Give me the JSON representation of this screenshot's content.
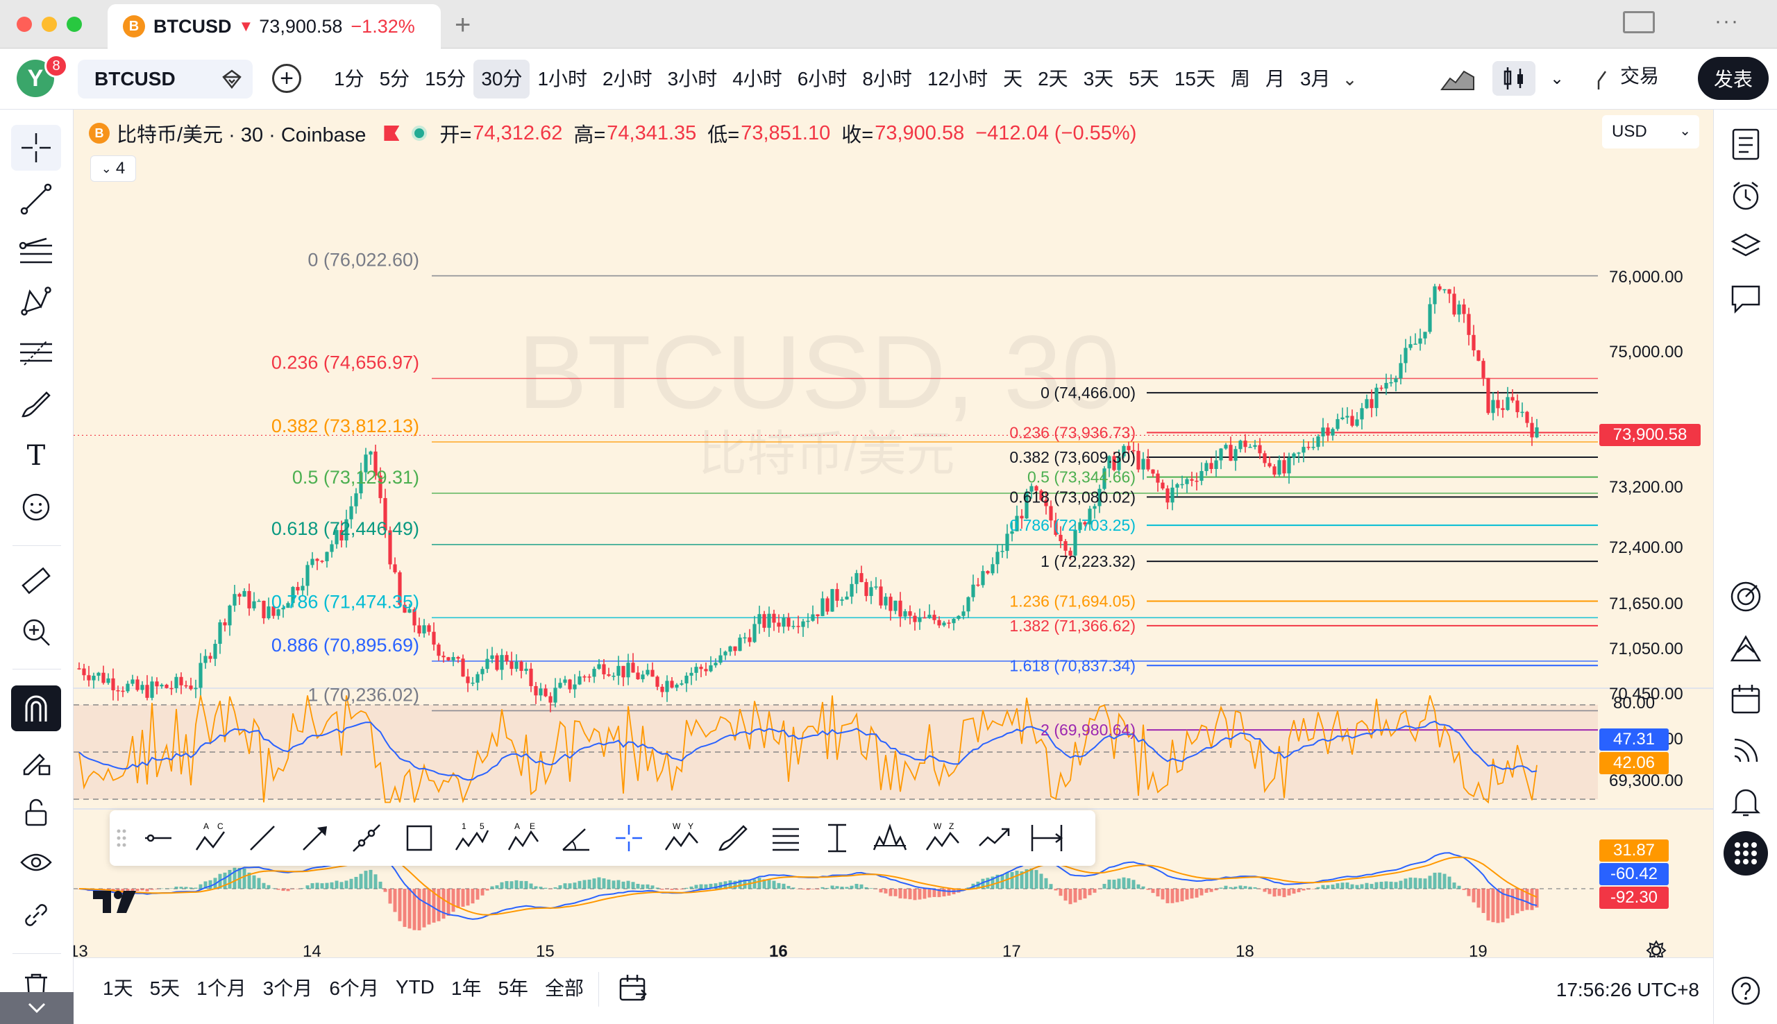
{
  "window": {
    "tab_symbol": "BTCUSD",
    "tab_price": "73,900.58",
    "tab_change": "−1.32%",
    "tab_coin_glyph": "B"
  },
  "toolbar": {
    "avatar_letter": "Y",
    "notification_count": "8",
    "symbol": "BTCUSD",
    "intervals": [
      "1分",
      "5分",
      "15分",
      "30分",
      "1小时",
      "2小时",
      "3小时",
      "4小时",
      "6小时",
      "8小时",
      "12小时",
      "天",
      "2天",
      "3天",
      "5天",
      "15天",
      "周",
      "月",
      "3月"
    ],
    "active_interval": "30分",
    "trade_label": "交易",
    "publish_label": "发表"
  },
  "legend": {
    "title": "比特币/美元 · 30 · Coinbase",
    "open_label": "开=",
    "open": "74,312.62",
    "high_label": "高=",
    "high": "74,341.35",
    "low_label": "低=",
    "low": "73,851.10",
    "close_label": "收=",
    "close": "73,900.58",
    "change": "−412.04 (−0.55%)",
    "collapse_count": "4"
  },
  "currency": "USD",
  "watermark": {
    "symbol": "BTCUSD, 30",
    "name": "比特币/美元"
  },
  "chart_data": {
    "type": "candlestick",
    "symbol": "BTCUSD",
    "interval": "30",
    "exchange": "Coinbase",
    "price_axis": [
      "76,000.00",
      "75,000.00",
      "73,200.00",
      "72,400.00",
      "71,650.00",
      "71,050.00",
      "70,450.00",
      "69,850.00",
      "69,300.00"
    ],
    "current_price": "73,900.58",
    "x_axis": [
      "13",
      "14",
      "15",
      "16",
      "17",
      "18",
      "19"
    ],
    "bold_x_label": "16",
    "close_path": [
      [
        "13 00:00",
        70800
      ],
      [
        "13 06:00",
        70500
      ],
      [
        "13 12:00",
        70600
      ],
      [
        "13 16:00",
        71800
      ],
      [
        "13 20:00",
        71500
      ],
      [
        "14 00:00",
        72200
      ],
      [
        "14 03:00",
        72600
      ],
      [
        "14 06:00",
        73700
      ],
      [
        "14 09:00",
        71600
      ],
      [
        "14 12:00",
        71200
      ],
      [
        "14 16:00",
        70700
      ],
      [
        "14 20:00",
        70950
      ],
      [
        "15 00:00",
        70400
      ],
      [
        "15 06:00",
        70850
      ],
      [
        "15 12:00",
        70600
      ],
      [
        "15 18:00",
        70900
      ],
      [
        "15 22:00",
        71400
      ],
      [
        "16 03:00",
        71500
      ],
      [
        "16 08:00",
        71950
      ],
      [
        "16 14:00",
        71400
      ],
      [
        "16 18:00",
        71500
      ],
      [
        "16 22:00",
        72150
      ],
      [
        "17 02:00",
        73150
      ],
      [
        "17 06:00",
        72400
      ],
      [
        "17 10:00",
        73500
      ],
      [
        "17 12:00",
        73700
      ],
      [
        "17 16:00",
        73100
      ],
      [
        "17 20:00",
        73500
      ],
      [
        "18 00:00",
        73800
      ],
      [
        "18 04:00",
        73400
      ],
      [
        "18 08:00",
        74000
      ],
      [
        "18 12:00",
        74200
      ],
      [
        "18 18:00",
        75200
      ],
      [
        "18 20:00",
        75950
      ],
      [
        "18 23:00",
        75300
      ],
      [
        "19 01:00",
        74300
      ],
      [
        "19 04:00",
        74300
      ],
      [
        "19 06:00",
        73900
      ]
    ],
    "fib_left": [
      {
        "ratio": "0",
        "price": "76,022.60",
        "color": "#787b86"
      },
      {
        "ratio": "0.236",
        "price": "74,656.97",
        "color": "#f23645"
      },
      {
        "ratio": "0.382",
        "price": "73,812.13",
        "color": "#ff9800"
      },
      {
        "ratio": "0.5",
        "price": "73,129.31",
        "color": "#4caf50"
      },
      {
        "ratio": "0.618",
        "price": "72,446.49",
        "color": "#089981"
      },
      {
        "ratio": "0.786",
        "price": "71,474.35",
        "color": "#00bcd4"
      },
      {
        "ratio": "0.886",
        "price": "70,895.69",
        "color": "#2962ff"
      },
      {
        "ratio": "1",
        "price": "70,236.02",
        "color": "#787b86"
      }
    ],
    "fib_right": [
      {
        "ratio": "0",
        "price": "74,466.00",
        "color": "#131722"
      },
      {
        "ratio": "0.236",
        "price": "73,936.73",
        "color": "#f23645"
      },
      {
        "ratio": "0.382",
        "price": "73,609.30",
        "color": "#131722"
      },
      {
        "ratio": "0.5",
        "price": "73,344.66",
        "color": "#4caf50"
      },
      {
        "ratio": "0.618",
        "price": "73,080.02",
        "color": "#131722"
      },
      {
        "ratio": "0.786",
        "price": "72,703.25",
        "color": "#00bcd4"
      },
      {
        "ratio": "1",
        "price": "72,223.32",
        "color": "#131722"
      },
      {
        "ratio": "1.236",
        "price": "71,694.05",
        "color": "#ff9800"
      },
      {
        "ratio": "1.382",
        "price": "71,366.62",
        "color": "#f23645"
      },
      {
        "ratio": "1.618",
        "price": "70,837.34",
        "color": "#2962ff"
      },
      {
        "ratio": "2",
        "price": "69,980.64",
        "color": "#9c27b0"
      }
    ],
    "rsi": {
      "level_top": "80.00",
      "value_blue": "47.31",
      "value_orange": "42.06"
    },
    "macd": {
      "value_orange": "31.87",
      "value_blue": "-60.42",
      "value_red": "-92.30"
    }
  },
  "ranges": [
    "1天",
    "5天",
    "1个月",
    "3个月",
    "6个月",
    "YTD",
    "1年",
    "5年",
    "全部"
  ],
  "clock": "17:56:26 UTC+8",
  "colors": {
    "up": "#22ab94",
    "down": "#f23645",
    "panel_bg": "#fdf3e1",
    "rsi_line": "#2962ff",
    "rsi_signal": "#ff9800"
  }
}
